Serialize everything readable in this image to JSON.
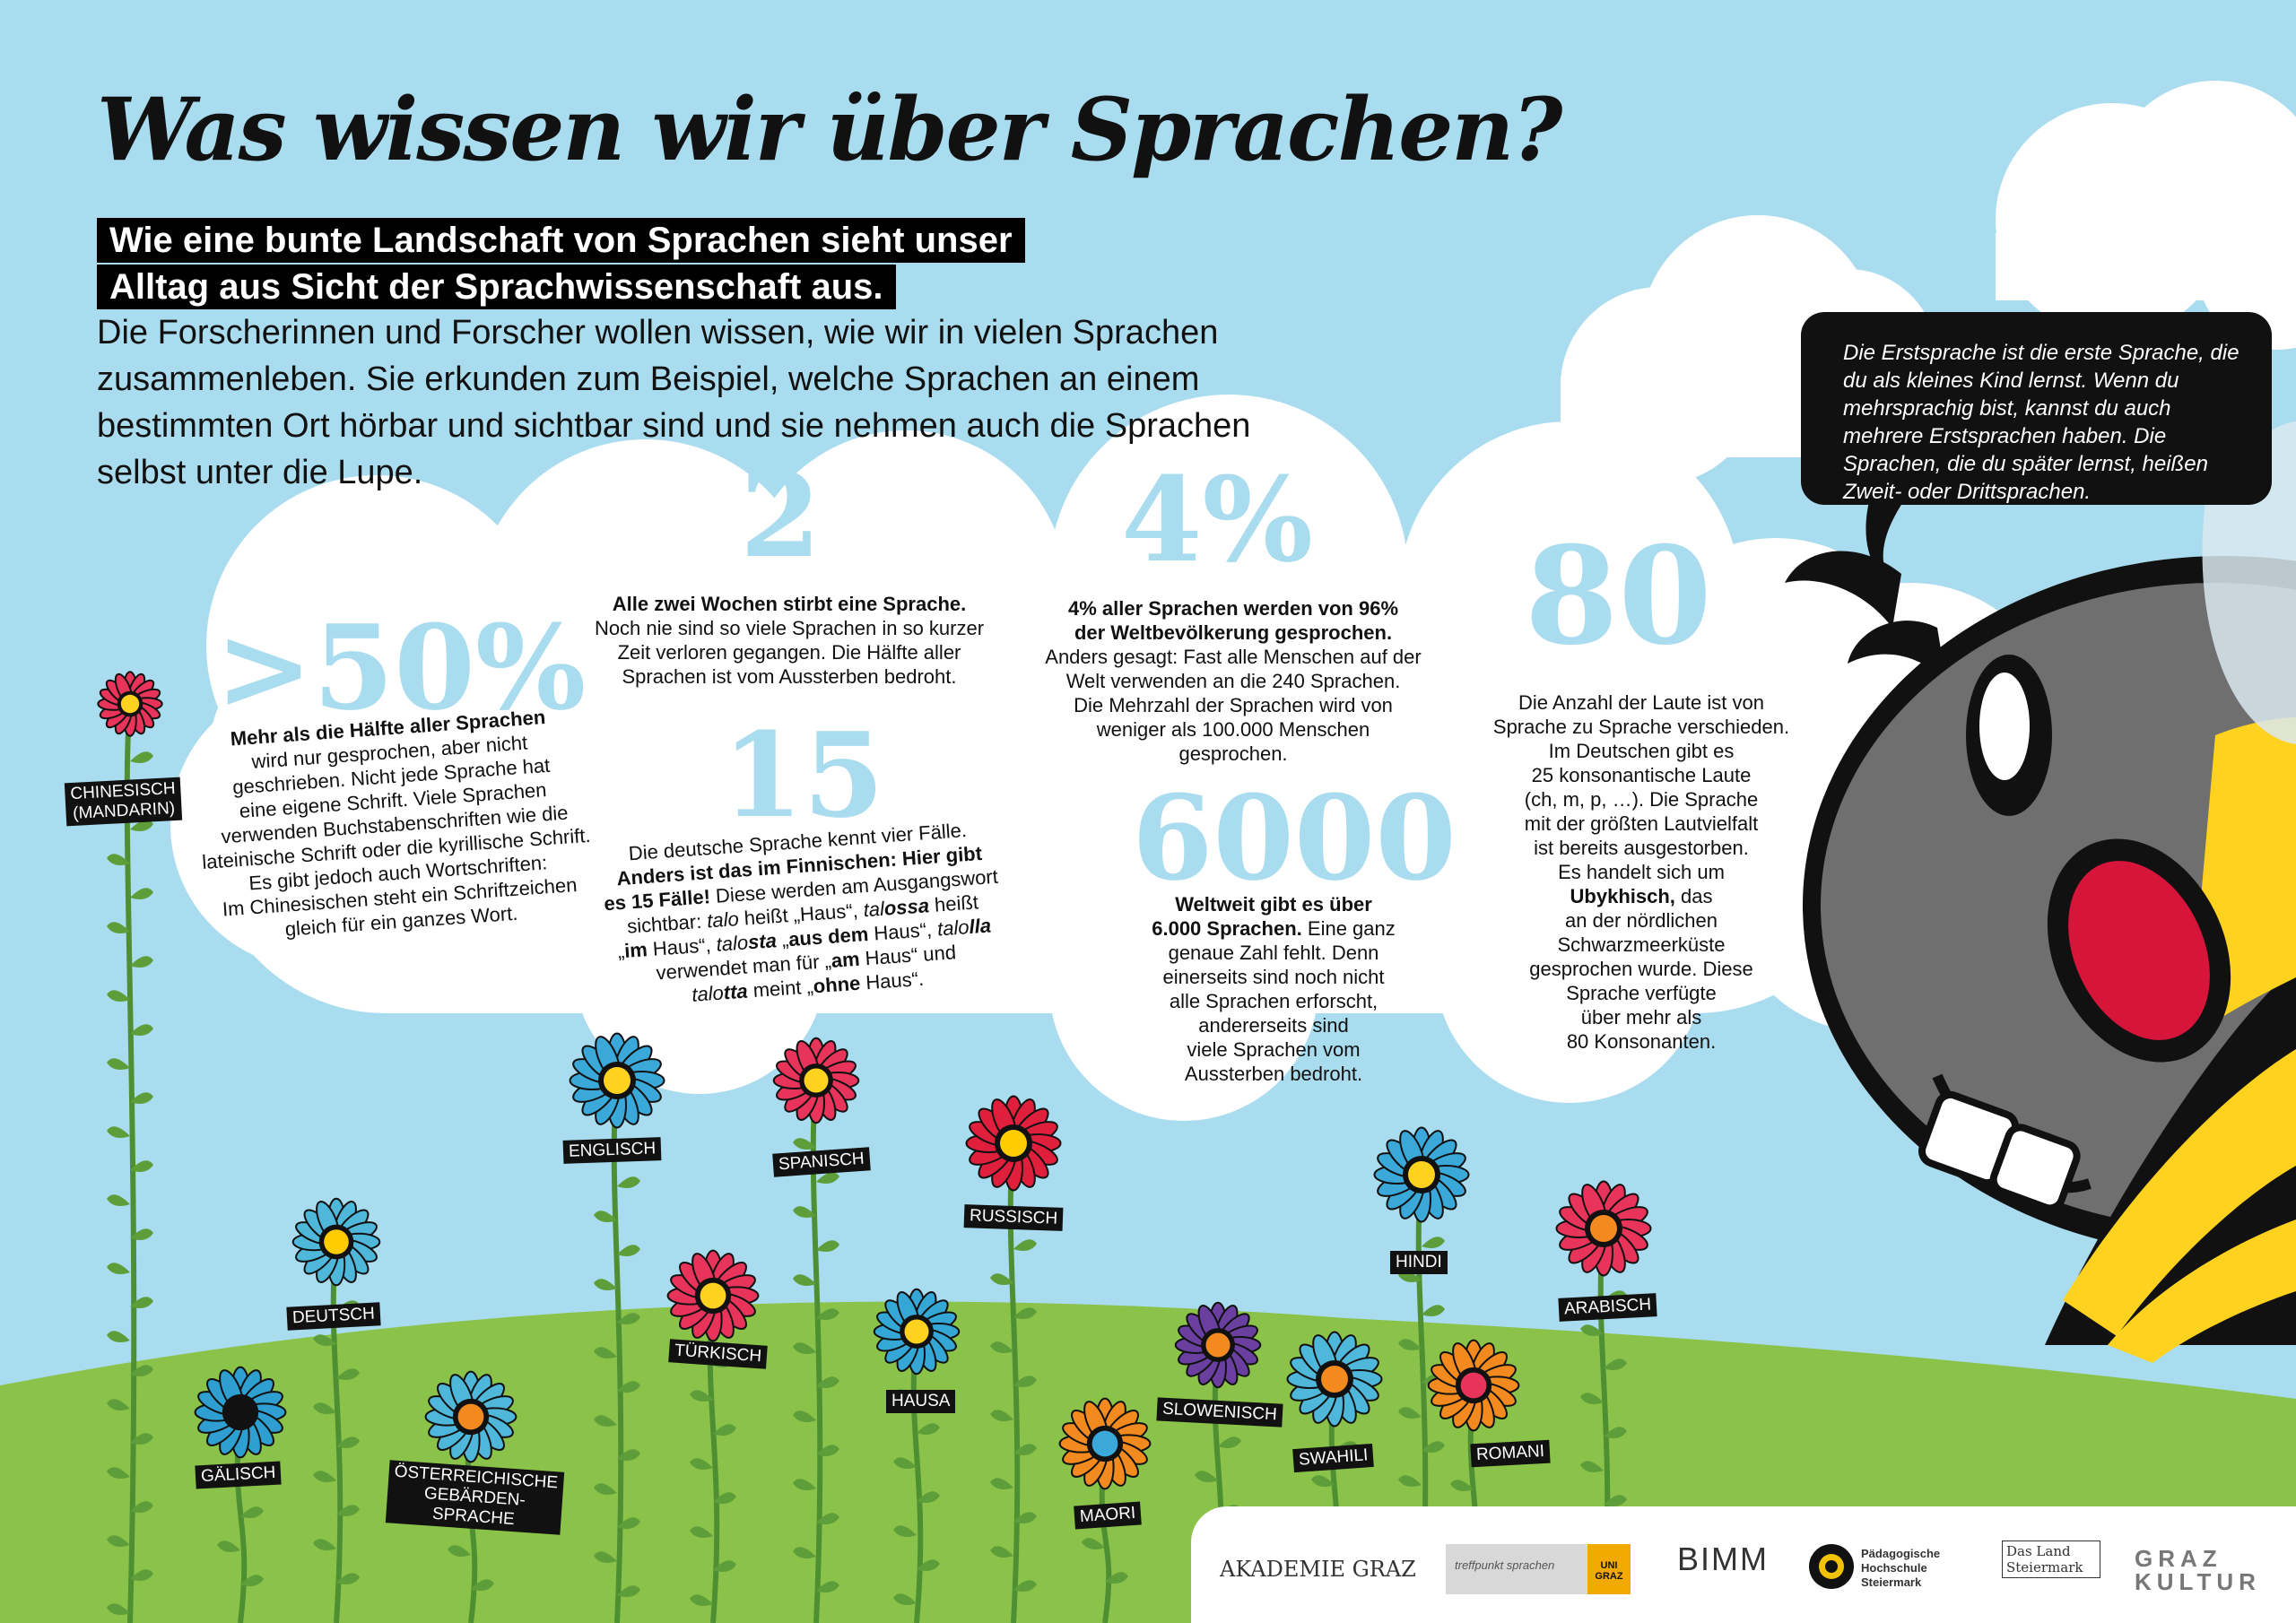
{
  "title": "Was wissen wir über Sprachen?",
  "subtitle": [
    "Wie eine bunte Landschaft von Sprachen sieht unser",
    "Alltag aus Sicht der Sprachwissenschaft aus."
  ],
  "intro": "Die Forscherinnen und Forscher wollen wissen, wie wir in vielen Sprachen zusammenleben. Sie erkunden zum Beispiel, welche Sprachen an einem bestimmten Ort hörbar und sichtbar sind und sie nehmen auch die Sprachen selbst unter die Lupe.",
  "bubble": "Die Erstsprache ist die erste Sprache, die du als kleines Kind lernst. Wenn du mehrsprachig bist, kannst du auch mehrere Erstsprachen haben. Die Sprachen, die du später lernst, heißen Zweit- oder Drittsprachen.",
  "facts": {
    "f50": {
      "number": ">50%",
      "html": "<b>Mehr als die Hälfte aller Sprachen</b><br>wird nur gesprochen, aber nicht<br>geschrieben. Nicht jede Sprache hat<br>eine eigene Schrift. Viele Sprachen<br>verwenden Buchstabenschriften wie die<br>lateinische Schrift oder die kyrillische Schrift.<br>Es gibt jedoch auch Wortschriften:<br>Im Chinesischen steht ein Schriftzeichen<br>gleich für ein ganzes Wort."
    },
    "f2": {
      "number": "2",
      "html": "<b>Alle zwei Wochen stirbt eine Sprache.</b><br>Noch nie sind so viele Sprachen in so kurzer<br>Zeit verloren gegangen. Die Hälfte aller<br>Sprachen ist vom Aussterben bedroht."
    },
    "f4": {
      "number": "4%",
      "html": "<b>4% aller Sprachen werden von 96%<br>der Weltbevölkerung gesprochen.</b><br>Anders gesagt: Fast alle Menschen auf der<br>Welt verwenden an die 240 Sprachen.<br>Die Mehrzahl der Sprachen wird von<br>weniger als 100.000 Menschen<br>gesprochen."
    },
    "f15": {
      "number": "15",
      "html": "Die deutsche Sprache kennt vier Fälle.<br><b>Anders ist das im Finnischen: Hier gibt<br>es 15 Fälle!</b> Diese werden am Ausgangswort<br>sichtbar: <i>talo</i> heißt „Haus“, <i>tal<b>ossa</b></i> heißt<br>„<b>im</b> Haus“, <i>talo<b>sta</b></i> „<b>aus dem</b> Haus“, <i>talo<b>lla</b></i><br>verwendet man für „<b>am</b> Haus“ und<br><i>talo<b>tta</b></i> meint „<b>ohne</b> Haus“."
    },
    "f6000": {
      "number": "6000",
      "html": "<b>Weltweit gibt es über<br>6.000 Sprachen.</b> Eine ganz<br>genaue Zahl fehlt. Denn<br>einerseits sind noch nicht<br>alle Sprachen erforscht,<br>andererseits sind<br>viele Sprachen vom<br>Aussterben bedroht."
    },
    "f80": {
      "number": "80",
      "html": "Die Anzahl der Laute ist von<br>Sprache zu Sprache verschieden.<br>Im Deutschen gibt es<br>25 konsonantische Laute<br>(ch, m, p, …). Die Sprache<br>mit der größten Lautvielfalt<br>ist bereits ausgestorben.<br>Es handelt sich um<br><b>Ubykhisch,</b> das<br>an der nördlichen<br>Schwarzmeerküste<br>gesprochen wurde. Diese<br>Sprache verfügte<br>über mehr als<br>80 Konsonanten."
    }
  },
  "flowers": [
    {
      "label": "CHINESISCH\n(MANDARIN)",
      "petal": "#e8335a",
      "center": "#ffd21f"
    },
    {
      "label": "DEUTSCH",
      "petal": "#4fb7d9",
      "center": "#ffcc00"
    },
    {
      "label": "GÄLISCH",
      "petal": "#2e9fd0",
      "center": "#111111"
    },
    {
      "label": "ÖSTERREICHISCHE\nGEBÄRDEN-\nSPRACHE",
      "petal": "#4fb7d9",
      "center": "#f28a1f"
    },
    {
      "label": "ENGLISCH",
      "petal": "#3aa8d8",
      "center": "#ffd21f"
    },
    {
      "label": "TÜRKISCH",
      "petal": "#e8335a",
      "center": "#ffd21f"
    },
    {
      "label": "SPANISCH",
      "petal": "#e8335a",
      "center": "#ffd21f"
    },
    {
      "label": "HAUSA",
      "petal": "#35a7d6",
      "center": "#ffd21f"
    },
    {
      "label": "RUSSISCH",
      "petal": "#e01f3d",
      "center": "#ffcc00"
    },
    {
      "label": "MAORI",
      "petal": "#f28a1f",
      "center": "#3aa8d8"
    },
    {
      "label": "SLOWENISCH",
      "petal": "#6a3fa0",
      "center": "#f28a1f"
    },
    {
      "label": "SWAHILI",
      "petal": "#4fb7d9",
      "center": "#f28a1f"
    },
    {
      "label": "HINDI",
      "petal": "#3aa8d8",
      "center": "#ffd21f"
    },
    {
      "label": "ROMANI",
      "petal": "#f28a1f",
      "center": "#e8335a"
    },
    {
      "label": "ARABISCH",
      "petal": "#e8335a",
      "center": "#f28a1f"
    }
  ],
  "logos": [
    "AKADEMIE GRAZ",
    "treffpunkt sprachen",
    "UNI GRAZ",
    "BIMM",
    "Pädagogische Hochschule Steiermark",
    "Das Land Steiermark",
    "GRAZ KULTUR"
  ],
  "colors": {
    "sky": "#a9dcee",
    "grass": "#8bc34a",
    "cloud": "#ffffff",
    "bee_yellow": "#ffd21f",
    "bee_gray": "#6f6f6f"
  }
}
